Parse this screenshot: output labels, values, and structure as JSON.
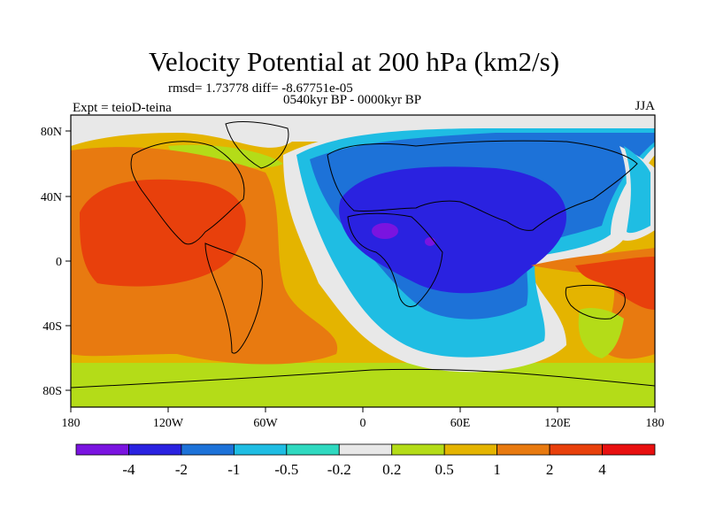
{
  "title": "Velocity Potential at 200 hPa (km2/s)",
  "rmsd_text": "rmsd= 1.73778 diff= -8.67751e-05",
  "period_text": "0540kyr BP - 0000kyr BP",
  "experiment_text": "Expt = teioD-teina",
  "season_text": "JJA",
  "axes": {
    "lon_labels": [
      "180",
      "120W",
      "60W",
      "0",
      "60E",
      "120E",
      "180"
    ],
    "lat_labels": [
      "80N",
      "40N",
      "0",
      "40S",
      "80S"
    ]
  },
  "colorbar": {
    "labels": [
      "-4",
      "-2",
      "-1",
      "-0.5",
      "-0.2",
      "0.2",
      "0.5",
      "1",
      "2",
      "4"
    ],
    "colors": [
      "#7a14e0",
      "#2a22e0",
      "#1d72d8",
      "#1fbde3",
      "#2fd9c0",
      "#e8e8e8",
      "#b4dc18",
      "#e4b400",
      "#e87a10",
      "#e8400c",
      "#e81010"
    ]
  }
}
